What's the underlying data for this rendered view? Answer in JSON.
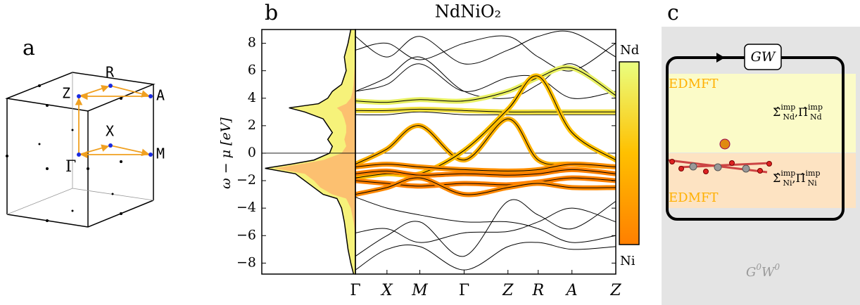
{
  "panel_a": {
    "label": "a",
    "points": {
      "Z": "Z",
      "R": "R",
      "A": "A",
      "X": "X",
      "M": "M",
      "G": "Γ"
    }
  },
  "chart_data": {
    "type": "line",
    "panel_label": "b",
    "title": "NdNiO₂",
    "y_label": "ω − μ [eV]",
    "x": [
      0,
      0.72,
      1.47,
      2.48,
      3.48,
      4.17,
      4.94,
      5.94
    ],
    "xlim": [
      0,
      5.94
    ],
    "xticks": [
      {
        "value": 0,
        "label": "Γ"
      },
      {
        "value": 0.72,
        "label": "X"
      },
      {
        "value": 1.47,
        "label": "M"
      },
      {
        "value": 2.48,
        "label": "Γ"
      },
      {
        "value": 3.48,
        "label": "Z"
      },
      {
        "value": 4.17,
        "label": "R"
      },
      {
        "value": 4.94,
        "label": "A"
      },
      {
        "value": 5.94,
        "label": "Z"
      }
    ],
    "ylim": [
      -8.8,
      9
    ],
    "yticks": [
      {
        "value": -8,
        "label": "−8"
      },
      {
        "value": -6,
        "label": "−6"
      },
      {
        "value": -4,
        "label": "−4"
      },
      {
        "value": -2,
        "label": "−2"
      },
      0,
      2,
      4,
      6,
      8
    ],
    "hline": 0,
    "series": [
      {
        "color": "#000000",
        "values": [
          -7.5,
          -6,
          -5,
          -7.5,
          -3.5,
          -4.5,
          -5.5,
          -3.5
        ]
      },
      {
        "color": "#000000",
        "values": [
          -3.2,
          -4,
          -4.5,
          -5,
          -5,
          -5.5,
          -6.5,
          -6
        ]
      },
      {
        "color": "#000000",
        "values": [
          -5.8,
          -5.5,
          -6.5,
          -5.8,
          -5.7,
          -5,
          -4,
          -5
        ]
      },
      {
        "color": "#000000",
        "values": [
          -8.5,
          -7,
          -6.8,
          -8.5,
          -6.8,
          -6.5,
          -7,
          -6.8
        ]
      },
      {
        "color": "#000000",
        "values": [
          2.8,
          2.8,
          3,
          2.8,
          2.8,
          2.8,
          2.8,
          2.8
        ]
      },
      {
        "color": "#000000",
        "values": [
          4.5,
          5.5,
          7,
          4.5,
          4,
          5,
          6.5,
          4
        ]
      },
      {
        "color": "#000000",
        "values": [
          7.5,
          8,
          6.8,
          8,
          8.5,
          7,
          6,
          8
        ]
      },
      {
        "color": "#000000",
        "values": [
          4.5,
          5,
          6.5,
          4.5,
          5.5,
          5.5,
          4,
          4.5
        ]
      },
      {
        "color": "#000000",
        "values": [
          8.5,
          7,
          8.5,
          6.5,
          7.5,
          8.5,
          8.8,
          7
        ]
      },
      {
        "color": "#e8f060",
        "values": [
          3.8,
          3.7,
          3.9,
          3.8,
          4.5,
          5.5,
          6.2,
          4.2
        ]
      },
      {
        "color": "#f0e040",
        "values": [
          3.1,
          3.1,
          3.2,
          3.1,
          3.0,
          3.0,
          3.0,
          3.0
        ]
      },
      {
        "color": "#ffb000",
        "values": [
          -0.8,
          0.3,
          2,
          -0.5,
          2.5,
          -0.5,
          -0.8,
          -1
        ]
      },
      {
        "color": "#ffc000",
        "values": [
          -1.8,
          -1.5,
          -1.5,
          0.2,
          3.2,
          5.6,
          1.5,
          -0.5
        ]
      },
      {
        "color": "#ff9000",
        "values": [
          -1,
          -0.8,
          -1,
          -1.2,
          -1.3,
          -1.2,
          -0.8,
          -1
        ]
      },
      {
        "color": "#ff8000",
        "values": [
          -1.5,
          -1.3,
          -1.6,
          -1.5,
          -1.6,
          -1.5,
          -1.2,
          -1.5
        ]
      },
      {
        "color": "#ff8000",
        "values": [
          -2,
          -2.2,
          -2.4,
          -2.2,
          -2.3,
          -2.1,
          -1.8,
          -2
        ]
      },
      {
        "color": "#ff8800",
        "values": [
          -3,
          -2.5,
          -1.8,
          -3,
          -2.5,
          -2.2,
          -2.5,
          -2.5
        ]
      }
    ],
    "dos_xlim": [
      0,
      1
    ],
    "dos_energy": [
      -8.8,
      -8,
      -7,
      -6,
      -5,
      -4,
      -3.3,
      -3,
      -2.5,
      -2,
      -1.5,
      -1.1,
      -0.8,
      -0.5,
      0,
      0.5,
      1,
      1.5,
      2,
      2.5,
      3,
      3.3,
      3.6,
      4,
      4.5,
      5,
      6,
      7,
      8,
      9
    ],
    "dos_total": [
      0.02,
      0.05,
      0.08,
      0.1,
      0.12,
      0.15,
      0.2,
      0.35,
      0.45,
      0.55,
      0.65,
      0.98,
      0.7,
      0.45,
      0.28,
      0.25,
      0.3,
      0.25,
      0.3,
      0.35,
      0.55,
      0.72,
      0.4,
      0.3,
      0.25,
      0.15,
      0.1,
      0.12,
      0.08,
      0.05
    ],
    "dos_ni": [
      0,
      0,
      0,
      0,
      0.02,
      0.05,
      0.1,
      0.25,
      0.38,
      0.45,
      0.55,
      0.88,
      0.6,
      0.35,
      0.15,
      0.1,
      0.12,
      0.1,
      0.1,
      0.12,
      0.15,
      0.2,
      0.1,
      0.05,
      0.03,
      0.02,
      0.01,
      0,
      0,
      0
    ],
    "colorbar": {
      "top": "Nd",
      "bottom": "Ni"
    }
  },
  "panel_c": {
    "label": "c",
    "gw": "GW",
    "edmft_top": "EDMFT",
    "edmft_bottom": "EDMFT",
    "nd": {
      "sigma": "Σ̂",
      "pi": "Π̂",
      "sup": "imp",
      "sub": "Nd",
      "sep": ","
    },
    "ni": {
      "sigma": "Σ̂",
      "pi": "Π̂",
      "sup": "imp",
      "sub": "Ni",
      "sep": ","
    },
    "g0w0": {
      "g": "G",
      "g_sup": "0",
      "w": "W",
      "w_sup": "0"
    }
  }
}
